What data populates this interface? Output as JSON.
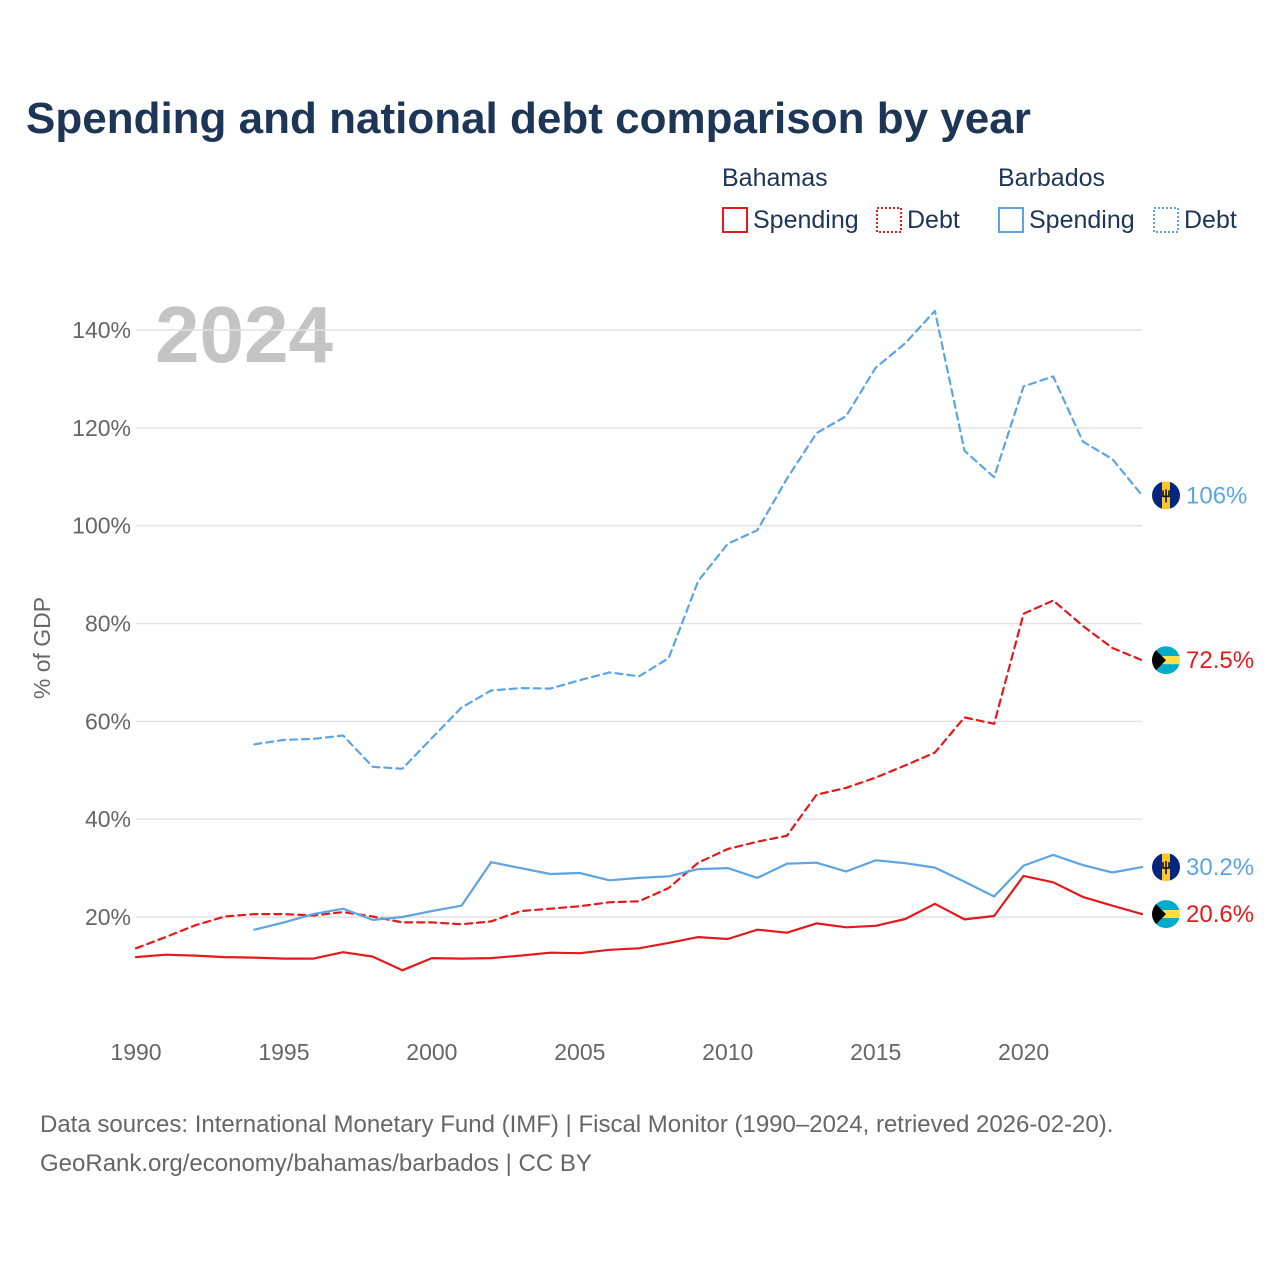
{
  "colors": {
    "bahamas": "#e31a1c",
    "barbados": "#5ba4e5",
    "title": "#1d3557",
    "text": "#666666",
    "grid": "#e2e2e2",
    "watermark": "#c4c4c4"
  },
  "chart_data": {
    "type": "line",
    "title": "Spending and national debt comparison by year",
    "ylabel": "% of GDP",
    "xlabel": "",
    "year_marker": "2024",
    "xlim": [
      1990,
      2024
    ],
    "ylim": [
      0,
      150
    ],
    "x_ticks": [
      1990,
      1995,
      2000,
      2005,
      2010,
      2015,
      2020
    ],
    "x_tick_labels": [
      "1990",
      "1995",
      "2000",
      "2005",
      "2010",
      "2015",
      "2020"
    ],
    "y_ticks": [
      20,
      40,
      60,
      80,
      100,
      120,
      140
    ],
    "y_tick_labels": [
      "20%",
      "40%",
      "60%",
      "80%",
      "100%",
      "120%",
      "140%"
    ],
    "legend": {
      "groups": [
        {
          "country": "Bahamas",
          "items": [
            "Spending",
            "Debt"
          ]
        },
        {
          "country": "Barbados",
          "items": [
            "Spending",
            "Debt"
          ]
        }
      ]
    },
    "series": [
      {
        "name": "Bahamas Debt",
        "country": "bahamas",
        "style": "dashed",
        "end_label": "72.5%",
        "x": [
          1990,
          1991,
          1992,
          1993,
          1994,
          1995,
          1996,
          1997,
          1998,
          1999,
          2000,
          2001,
          2002,
          2003,
          2004,
          2005,
          2006,
          2007,
          2008,
          2009,
          2010,
          2011,
          2012,
          2013,
          2014,
          2015,
          2016,
          2017,
          2018,
          2019,
          2020,
          2021,
          2022,
          2023,
          2024
        ],
        "values": [
          13.6,
          15.9,
          18.3,
          20.1,
          20.6,
          20.6,
          20.3,
          21.0,
          20.1,
          18.9,
          18.9,
          18.5,
          19.1,
          21.2,
          21.7,
          22.2,
          23.0,
          23.2,
          25.9,
          31.1,
          33.9,
          35.4,
          36.6,
          45.0,
          46.4,
          48.5,
          51.0,
          53.6,
          60.8,
          59.5,
          82.0,
          84.7,
          79.5,
          75.0,
          72.5
        ]
      },
      {
        "name": "Bahamas Spending",
        "country": "bahamas",
        "style": "solid",
        "end_label": "20.6%",
        "x": [
          1990,
          1991,
          1992,
          1993,
          1994,
          1995,
          1996,
          1997,
          1998,
          1999,
          2000,
          2001,
          2002,
          2003,
          2004,
          2005,
          2006,
          2007,
          2008,
          2009,
          2010,
          2011,
          2012,
          2013,
          2014,
          2015,
          2016,
          2017,
          2018,
          2019,
          2020,
          2021,
          2022,
          2023,
          2024
        ],
        "values": [
          11.8,
          12.3,
          12.1,
          11.8,
          11.7,
          11.5,
          11.5,
          12.8,
          11.9,
          9.1,
          11.6,
          11.5,
          11.6,
          12.1,
          12.7,
          12.6,
          13.3,
          13.6,
          14.7,
          15.9,
          15.5,
          17.4,
          16.8,
          18.7,
          17.9,
          18.2,
          19.6,
          22.7,
          19.5,
          20.2,
          28.4,
          27.1,
          24.1,
          22.3,
          20.6
        ]
      },
      {
        "name": "Barbados Debt",
        "country": "barbados",
        "style": "dashed",
        "end_label": "106%",
        "x": [
          1994,
          1995,
          1996,
          1997,
          1998,
          1999,
          2000,
          2001,
          2002,
          2003,
          2004,
          2005,
          2006,
          2007,
          2008,
          2009,
          2010,
          2011,
          2012,
          2013,
          2014,
          2015,
          2016,
          2017,
          2018,
          2019,
          2020,
          2021,
          2022,
          2023,
          2024
        ],
        "values": [
          55.3,
          56.2,
          56.4,
          57.1,
          50.7,
          50.3,
          56.6,
          62.8,
          66.3,
          66.8,
          66.7,
          68.4,
          70.0,
          69.2,
          72.9,
          88.7,
          96.3,
          99.1,
          109.6,
          118.9,
          122.4,
          132.3,
          137.3,
          143.9,
          115.3,
          109.9,
          128.5,
          130.5,
          117.2,
          113.6,
          106.2
        ]
      },
      {
        "name": "Barbados Spending",
        "country": "barbados",
        "style": "solid",
        "end_label": "30.2%",
        "x": [
          1994,
          1995,
          1996,
          1997,
          1998,
          1999,
          2000,
          2001,
          2002,
          2003,
          2004,
          2005,
          2006,
          2007,
          2008,
          2009,
          2010,
          2011,
          2012,
          2013,
          2014,
          2015,
          2016,
          2017,
          2018,
          2019,
          2020,
          2021,
          2022,
          2023,
          2024
        ],
        "values": [
          17.4,
          18.9,
          20.6,
          21.7,
          19.4,
          20.0,
          21.2,
          22.3,
          31.2,
          30.0,
          28.8,
          29.0,
          27.5,
          28.0,
          28.3,
          29.8,
          30.0,
          28.0,
          30.9,
          31.1,
          29.3,
          31.6,
          31.0,
          30.1,
          27.2,
          24.2,
          30.5,
          32.7,
          30.6,
          29.1,
          30.2
        ]
      }
    ]
  },
  "source": {
    "line1": "Data sources: International Monetary Fund (IMF) | Fiscal Monitor (1990–2024, retrieved 2026-02-20).",
    "line2": "GeoRank.org/economy/bahamas/barbados | CC BY"
  }
}
